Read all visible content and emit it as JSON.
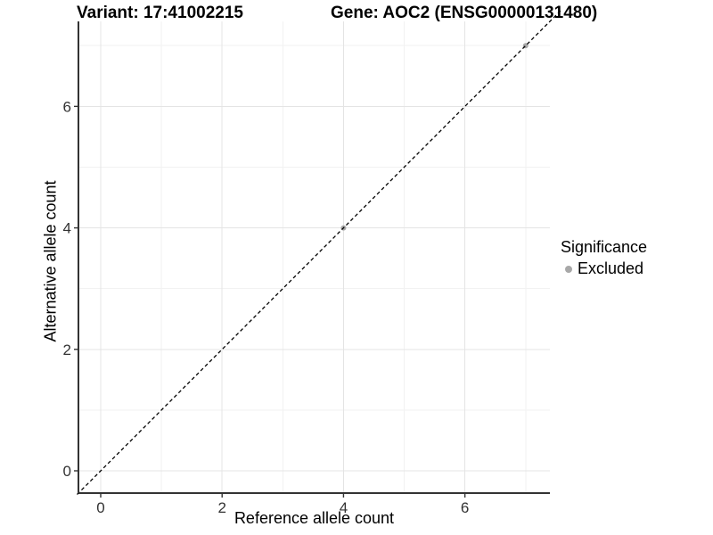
{
  "titles": {
    "variant": "Variant: 17:41002215",
    "gene": "Gene: AOC2 (ENSG00000131480)"
  },
  "legend": {
    "title": "Significance",
    "entries": [
      {
        "label": "Excluded",
        "color": "#a8a8a8",
        "marker": "dot"
      }
    ]
  },
  "colors": {
    "grid_major": "#e4e4e4",
    "grid_minor": "#f2f2f2",
    "axis_line": "#333333",
    "tick_text": "#333333",
    "point": "#a8a8a8",
    "reference_line": "#000000"
  },
  "chart_data": {
    "type": "scatter",
    "title_left": "Variant: 17:41002215",
    "title_right": "Gene: AOC2 (ENSG00000131480)",
    "xlabel": "Reference allele count",
    "ylabel": "Alternative allele count",
    "xlim": [
      -0.367,
      7.4
    ],
    "ylim": [
      -0.367,
      7.4
    ],
    "x_ticks": [
      0,
      2,
      4,
      6
    ],
    "y_ticks": [
      0,
      2,
      4,
      6
    ],
    "x_minor_ticks": [
      1,
      3,
      5,
      7
    ],
    "y_minor_ticks": [
      1,
      3,
      5,
      7
    ],
    "grid": "major+minor",
    "legend_position": "right",
    "series": [
      {
        "name": "Excluded",
        "color": "#a8a8a8",
        "points": [
          [
            4,
            4
          ],
          [
            7,
            7
          ]
        ]
      }
    ],
    "reference_line": {
      "slope": 1,
      "intercept": 0,
      "style": "dashed",
      "color": "#000000"
    }
  }
}
